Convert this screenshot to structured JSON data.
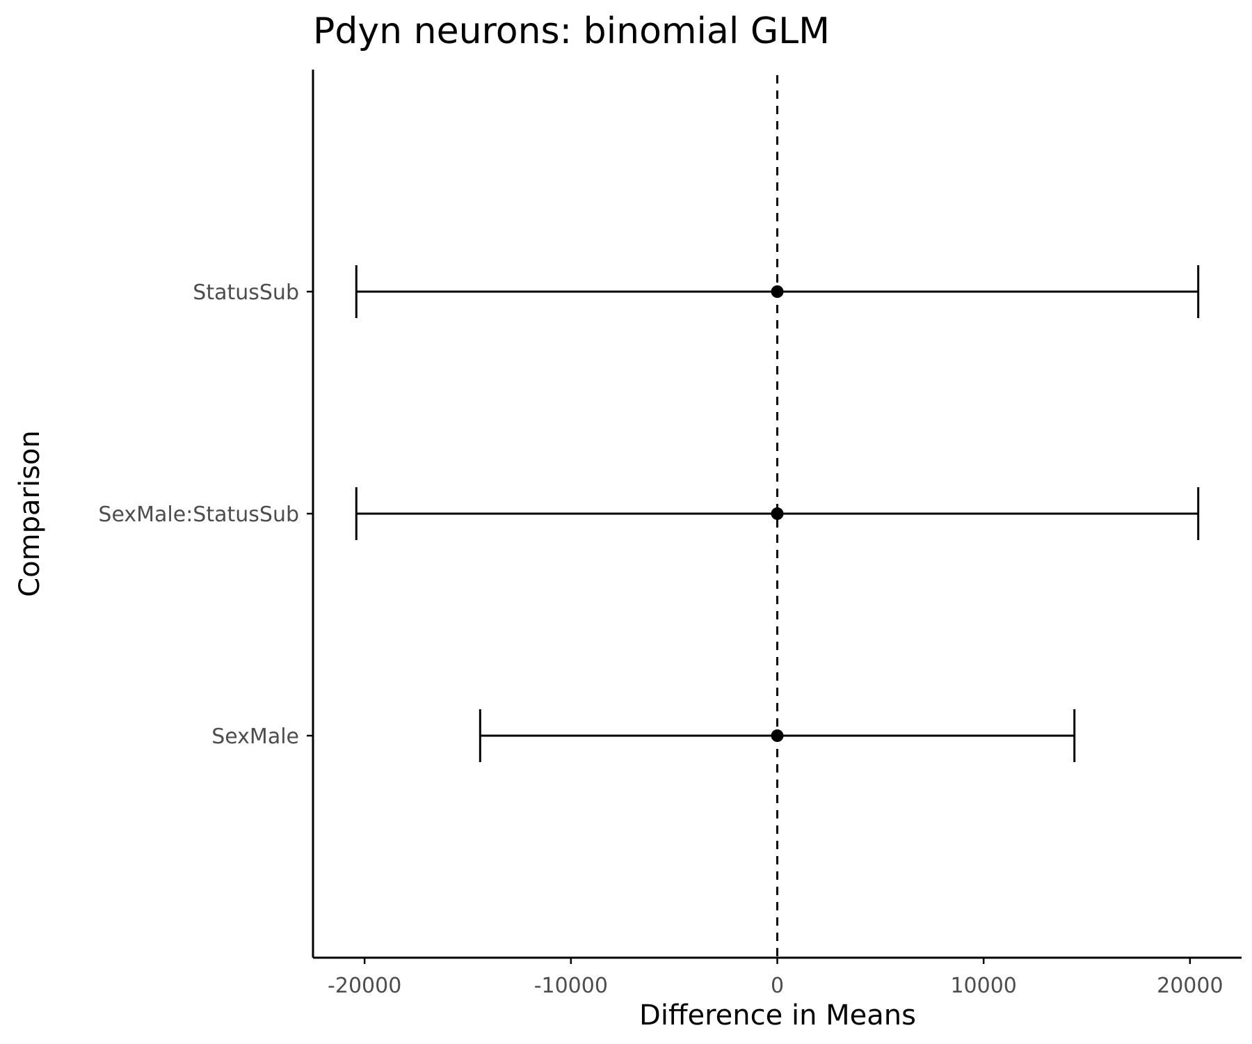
{
  "chart_data": {
    "type": "errorbar",
    "title": "Pdyn neurons: binomial GLM",
    "xlabel": "Difference in Means",
    "ylabel": "Comparison",
    "xlim": [
      -22500,
      22500
    ],
    "xticks": [
      -20000,
      -10000,
      0,
      10000,
      20000
    ],
    "xtick_labels": [
      "-20000",
      "-10000",
      "0",
      "10000",
      "20000"
    ],
    "categories": [
      "SexMale",
      "SexMale:StatusSub",
      "StatusSub"
    ],
    "estimates": [
      0,
      0,
      0
    ],
    "lower": [
      -14400,
      -20400,
      -20400
    ],
    "upper": [
      14400,
      20400,
      20400
    ],
    "reference_line": 0,
    "grid": false,
    "colors": {
      "marks": "#000000",
      "tick_text": "#4d4d4d",
      "background": "#ffffff"
    }
  }
}
